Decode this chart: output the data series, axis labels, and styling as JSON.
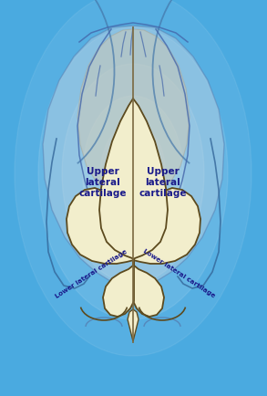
{
  "bg_color": "#4aaae0",
  "cream": "#f2eecc",
  "outline": "#5c4a1e",
  "dark_line": "#7a6840",
  "label_color": "#1a1a8a",
  "bone_color": "#c8c4b0",
  "figsize": [
    2.93,
    4.34
  ],
  "dpi": 100,
  "label_upper_left": "Upper\nlateral\ncartilage",
  "label_upper_right": "Upper\nlateral\ncartilage",
  "label_lower_left": "Lower lateral cartilage",
  "label_lower_right": "Lower lateral cartilage"
}
